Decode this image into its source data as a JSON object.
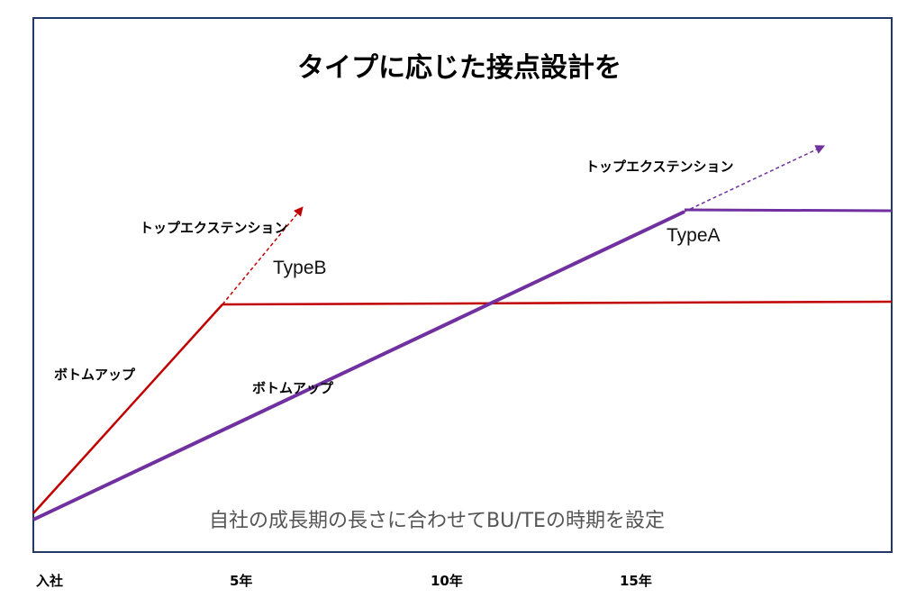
{
  "title": "タイプに応じた接点設計を",
  "note": "自社の成長期の長さに合わせてBU/TEの時期を設定",
  "colors": {
    "type_a": "#7030A0",
    "type_b": "#C00000",
    "frame": "#1F3864"
  },
  "x_axis": {
    "labels": [
      "入社",
      "5年",
      "10年",
      "15年"
    ]
  },
  "type_b": {
    "name": "TypeB",
    "bottom_up_label": "ボトムアップ",
    "top_extension_label": "トップエクステンション"
  },
  "type_a": {
    "name": "TypeA",
    "bottom_up_label": "ボトムアップ",
    "top_extension_label": "トップエクステンション"
  }
}
